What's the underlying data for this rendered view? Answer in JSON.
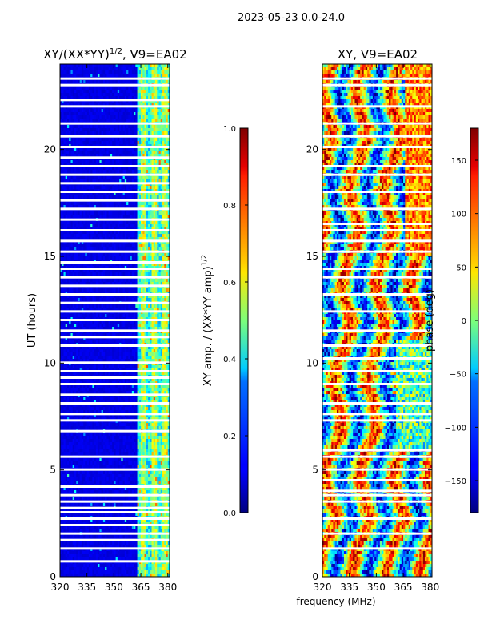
{
  "figure": {
    "suptitle": "2023-05-23 0.0-24.0",
    "xlabel": "frequency (MHz)"
  },
  "chart_data": [
    {
      "type": "heatmap",
      "title_main": "XY/(XX*YY)",
      "title_sup": "1/2",
      "title_rest": ", V9=EA02",
      "xlabel": "frequency (MHz)",
      "ylabel": "UT (hours)",
      "xlim": [
        320,
        381
      ],
      "ylim": [
        0,
        24
      ],
      "xticks": [
        320,
        335,
        350,
        365,
        380
      ],
      "yticks": [
        0,
        5,
        10,
        15,
        20
      ],
      "colorbar": {
        "label": "XY amp. / (XX*YY amp)",
        "label_sup": "1/2",
        "range": [
          0.0,
          1.0
        ],
        "ticks": [
          "0.0",
          "0.2",
          "0.4",
          "0.6",
          "0.8",
          "1.0"
        ],
        "tick_values": [
          0.0,
          0.2,
          0.4,
          0.6,
          0.8,
          1.0
        ],
        "colormap": "jet"
      },
      "high_band_start_mhz": 363,
      "bright_channels_mhz": [
        366,
        372,
        378
      ],
      "data_gaps_hours": [
        0.7,
        1.3,
        1.7,
        2.0,
        2.4,
        2.7,
        3.0,
        3.2,
        3.5,
        3.8,
        4.2,
        5.0,
        5.6,
        6.8,
        7.3,
        7.6,
        8.1,
        8.5,
        9.0,
        9.3,
        9.6,
        10.0,
        10.8,
        11.2,
        11.5,
        12.0,
        12.4,
        12.8,
        13.2,
        13.6,
        14.0,
        14.4,
        14.7,
        15.2,
        15.7,
        16.2,
        16.7,
        17.2,
        17.6,
        18.0,
        18.4,
        18.8,
        19.2,
        19.6,
        20.1,
        20.6,
        21.2,
        22.0,
        22.3,
        23.0,
        23.3
      ]
    },
    {
      "type": "heatmap",
      "title_main": "XY, V9=EA02",
      "xlabel": "frequency (MHz)",
      "ylabel": "",
      "xlim": [
        320,
        381
      ],
      "ylim": [
        0,
        24
      ],
      "xticks": [
        320,
        335,
        350,
        365,
        380
      ],
      "yticks": [
        0,
        5,
        10,
        15,
        20
      ],
      "colorbar": {
        "label": "phase (deg)",
        "range": [
          -180,
          180
        ],
        "ticks": [
          "−150",
          "−100",
          "−50",
          "0",
          "50",
          "100",
          "150"
        ],
        "tick_values": [
          -150,
          -100,
          -50,
          0,
          50,
          100,
          150
        ],
        "colormap": "jet"
      },
      "data_gaps_hours": [
        1.3,
        2.0,
        2.7,
        3.5,
        3.8,
        4.0,
        4.5,
        5.0,
        5.6,
        5.9,
        7.3,
        7.6,
        8.1,
        9.0,
        9.6,
        10.2,
        10.8,
        11.5,
        12.4,
        13.2,
        14.0,
        14.4,
        15.2,
        15.7,
        16.2,
        16.5,
        17.2,
        18.0,
        18.8,
        19.2,
        20.1,
        20.6,
        21.2,
        22.0,
        23.0,
        23.3
      ]
    }
  ]
}
